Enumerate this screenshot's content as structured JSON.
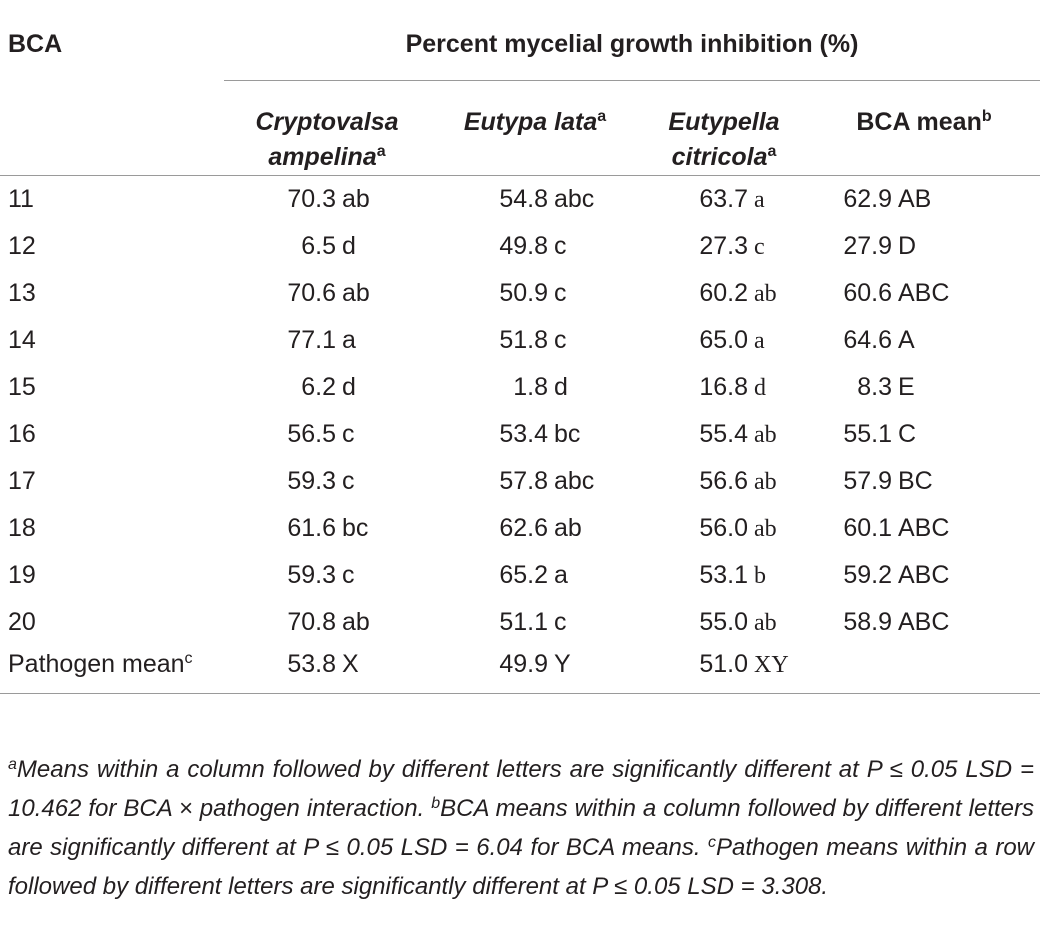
{
  "header": {
    "bca": "BCA",
    "group_title": "Percent mycelial growth inhibition (%)",
    "cols": [
      {
        "line1": "Cryptovalsa",
        "line2": "ampelina",
        "sup": "a"
      },
      {
        "line1": "Eutypa lata",
        "line2": "",
        "sup": "a"
      },
      {
        "line1": "Eutypella",
        "line2": "citricola",
        "sup": "a"
      },
      {
        "line1": "BCA mean",
        "line2": "",
        "sup": "b"
      }
    ]
  },
  "rows": [
    {
      "id": "11",
      "c1": "70.3",
      "c1l": "ab",
      "c2": "54.8",
      "c2l": "abc",
      "c3": "63.7",
      "c3l": "a",
      "c4": "62.9",
      "c4l": "AB"
    },
    {
      "id": "12",
      "c1": "6.5",
      "c1l": "d",
      "c2": "49.8",
      "c2l": "c",
      "c3": "27.3",
      "c3l": "c",
      "c4": "27.9",
      "c4l": "D"
    },
    {
      "id": "13",
      "c1": "70.6",
      "c1l": "ab",
      "c2": "50.9",
      "c2l": "c",
      "c3": "60.2",
      "c3l": "ab",
      "c4": "60.6",
      "c4l": "ABC"
    },
    {
      "id": "14",
      "c1": "77.1",
      "c1l": "a",
      "c2": "51.8",
      "c2l": "c",
      "c3": "65.0",
      "c3l": "a",
      "c4": "64.6",
      "c4l": "A"
    },
    {
      "id": "15",
      "c1": "6.2",
      "c1l": "d",
      "c2": "1.8",
      "c2l": "d",
      "c3": "16.8",
      "c3l": "d",
      "c4": "8.3",
      "c4l": "E"
    },
    {
      "id": "16",
      "c1": "56.5",
      "c1l": "c",
      "c2": "53.4",
      "c2l": "bc",
      "c3": "55.4",
      "c3l": "ab",
      "c4": "55.1",
      "c4l": "C"
    },
    {
      "id": "17",
      "c1": "59.3",
      "c1l": "c",
      "c2": "57.8",
      "c2l": "abc",
      "c3": "56.6",
      "c3l": "ab",
      "c4": "57.9",
      "c4l": "BC"
    },
    {
      "id": "18",
      "c1": "61.6",
      "c1l": "bc",
      "c2": "62.6",
      "c2l": "ab",
      "c3": "56.0",
      "c3l": "ab",
      "c4": "60.1",
      "c4l": "ABC"
    },
    {
      "id": "19",
      "c1": "59.3",
      "c1l": "c",
      "c2": "65.2",
      "c2l": "a",
      "c3": "53.1",
      "c3l": "b",
      "c4": "59.2",
      "c4l": "ABC"
    },
    {
      "id": "20",
      "c1": "70.8",
      "c1l": "ab",
      "c2": "51.1",
      "c2l": "c",
      "c3": "55.0",
      "c3l": "ab",
      "c4": "58.9",
      "c4l": "ABC"
    }
  ],
  "pathogen_row": {
    "label": "Pathogen mean",
    "sup": "c",
    "c1": "53.8",
    "c1l": "X",
    "c2": "49.9",
    "c2l": "Y",
    "c3": "51.0",
    "c3l": "XY"
  },
  "footnotes": {
    "a_sup": "a",
    "a_text": "Means within a column followed by different letters are significantly different at P ≤ 0.05 LSD = 10.462 for BCA × pathogen interaction.",
    "b_sup": "b",
    "b_text": "BCA means within a column followed by different letters are significantly different at P ≤ 0.05 LSD = 6.04 for BCA means.",
    "c_sup": "c",
    "c_text": "Pathogen means within a row followed by different letters are significantly different at P ≤ 0.05 LSD = 3.308."
  }
}
